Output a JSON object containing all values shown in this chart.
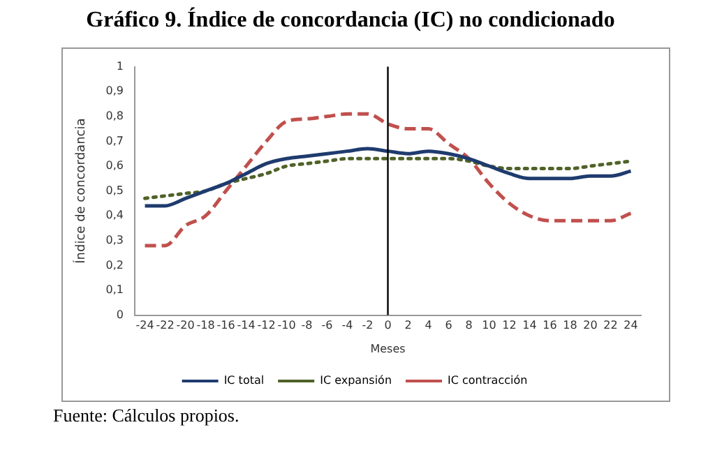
{
  "chart_data": {
    "type": "line",
    "title": "Gráfico 9. Índice de concordancia (IC) no condicionado",
    "xlabel": "Meses",
    "ylabel": "Índice de concordancia",
    "x": [
      -24,
      -22,
      -20,
      -18,
      -16,
      -14,
      -12,
      -10,
      -8,
      -6,
      -4,
      -2,
      0,
      2,
      4,
      6,
      8,
      10,
      12,
      14,
      16,
      18,
      20,
      22,
      24
    ],
    "series": [
      {
        "name": "IC total",
        "color": "#1f3b6e",
        "line_style": "solid",
        "values": [
          0.44,
          0.44,
          0.47,
          0.5,
          0.53,
          0.57,
          0.61,
          0.63,
          0.64,
          0.65,
          0.66,
          0.67,
          0.66,
          0.65,
          0.66,
          0.65,
          0.63,
          0.6,
          0.57,
          0.55,
          0.55,
          0.55,
          0.56,
          0.56,
          0.58
        ]
      },
      {
        "name": "IC expansión",
        "color": "#4f6228",
        "line_style": "dotted",
        "values": [
          0.47,
          0.48,
          0.49,
          0.5,
          0.53,
          0.55,
          0.57,
          0.6,
          0.61,
          0.62,
          0.63,
          0.63,
          0.63,
          0.63,
          0.63,
          0.63,
          0.62,
          0.6,
          0.59,
          0.59,
          0.59,
          0.59,
          0.6,
          0.61,
          0.62
        ]
      },
      {
        "name": "IC contracción",
        "color": "#c0504d",
        "line_style": "dashed",
        "values": [
          0.28,
          0.28,
          0.36,
          0.4,
          0.5,
          0.6,
          0.7,
          0.78,
          0.79,
          0.8,
          0.81,
          0.81,
          0.77,
          0.75,
          0.75,
          0.69,
          0.63,
          0.53,
          0.45,
          0.4,
          0.38,
          0.38,
          0.38,
          0.38,
          0.41
        ]
      }
    ],
    "xlim": [
      -25,
      25
    ],
    "xticks": [
      -24,
      -22,
      -20,
      -18,
      -16,
      -14,
      -12,
      -10,
      -8,
      -6,
      -4,
      -2,
      0,
      2,
      4,
      6,
      8,
      10,
      12,
      14,
      16,
      18,
      20,
      22,
      24
    ],
    "ylim": [
      0,
      1
    ],
    "yticks": [
      0,
      {
        "value": 0.1,
        "label": "0,1"
      },
      {
        "value": 0.2,
        "label": "0,2"
      },
      {
        "value": 0.3,
        "label": "0,3"
      },
      {
        "value": 0.4,
        "label": "0,4"
      },
      {
        "value": 0.5,
        "label": "0,5"
      },
      {
        "value": 0.6,
        "label": "0,6"
      },
      {
        "value": 0.7,
        "label": "0,7"
      },
      {
        "value": 0.8,
        "label": "0,8"
      },
      {
        "value": 0.9,
        "label": "0,9"
      },
      1
    ],
    "ref_lines": [
      {
        "axis": "x",
        "value": 0,
        "color": "#000000"
      }
    ],
    "grid": false,
    "legend": "bottom",
    "marker": "none",
    "annotations": [
      "Fuente: Cálculos propios."
    ]
  }
}
